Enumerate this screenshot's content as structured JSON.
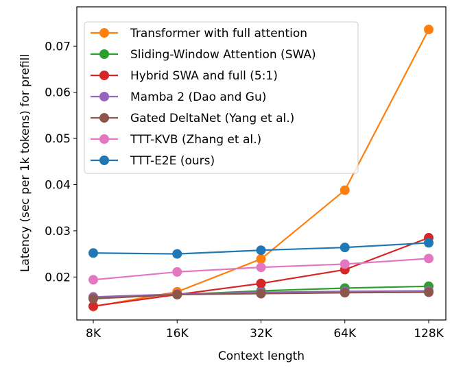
{
  "chart_data": {
    "type": "line",
    "title": "",
    "xlabel": "Context length",
    "ylabel": "Latency (sec per 1k tokens) for prefill",
    "categories": [
      "8K",
      "16K",
      "32K",
      "64K",
      "128K"
    ],
    "x_scale": "log2",
    "ylim": [
      0.0107,
      0.0785
    ],
    "yticks": [
      0.02,
      0.03,
      0.04,
      0.05,
      0.06,
      0.07
    ],
    "ytick_labels": [
      "0.02",
      "0.03",
      "0.04",
      "0.05",
      "0.06",
      "0.07"
    ],
    "grid": false,
    "legend_position": "top-left",
    "series": [
      {
        "name": "Transformer with full attention",
        "color": "#ff7f0e",
        "values": [
          0.0136,
          0.0168,
          0.0239,
          0.0388,
          0.0736
        ]
      },
      {
        "name": "Sliding-Window Attention (SWA)",
        "color": "#2ca02c",
        "values": [
          0.0155,
          0.0162,
          0.017,
          0.0176,
          0.018
        ]
      },
      {
        "name": "Hybrid SWA and full (5:1)",
        "color": "#d62728",
        "values": [
          0.0137,
          0.0162,
          0.0186,
          0.0216,
          0.0285
        ]
      },
      {
        "name": "Mamba 2 (Dao and Gu)",
        "color": "#9467bd",
        "values": [
          0.0157,
          0.0163,
          0.0167,
          0.0169,
          0.017
        ]
      },
      {
        "name": "Gated DeltaNet (Yang et al.)",
        "color": "#8c564b",
        "values": [
          0.0153,
          0.0162,
          0.0164,
          0.0166,
          0.0167
        ]
      },
      {
        "name": "TTT-KVB (Zhang et al.)",
        "color": "#e377c2",
        "values": [
          0.0194,
          0.0211,
          0.0221,
          0.0228,
          0.024
        ]
      },
      {
        "name": "TTT-E2E (ours)",
        "color": "#1f77b4",
        "values": [
          0.0252,
          0.025,
          0.0258,
          0.0264,
          0.0274
        ]
      }
    ]
  }
}
